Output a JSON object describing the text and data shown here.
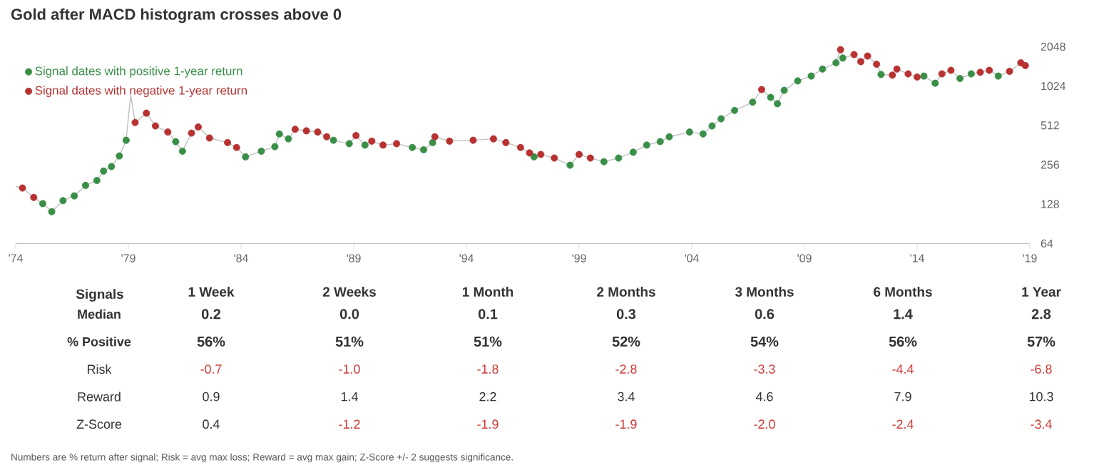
{
  "chart_data": [
    {
      "type": "scatter",
      "title": "Gold after MACD histogram crosses above 0",
      "marker": "circle",
      "log": "y",
      "legend": "top left",
      "xlim": [
        1974,
        2019
      ],
      "ylim": [
        64,
        2048
      ],
      "xticks": [
        {
          "value": 1974,
          "label": "'74"
        },
        {
          "value": 1979,
          "label": "'79"
        },
        {
          "value": 1984,
          "label": "'84"
        },
        {
          "value": 1989,
          "label": "'89"
        },
        {
          "value": 1994,
          "label": "'94"
        },
        {
          "value": 1999,
          "label": "'99"
        },
        {
          "value": 2004,
          "label": "'04"
        },
        {
          "value": 2009,
          "label": "'09"
        },
        {
          "value": 2014,
          "label": "'14"
        },
        {
          "value": 2019,
          "label": "'19"
        }
      ],
      "yticks": [
        64,
        128,
        256,
        512,
        1024,
        2048
      ],
      "series": [
        {
          "type": "line",
          "marker": "none",
          "color": "#c0c0c0",
          "x": [
            1974.0,
            1974.3,
            1974.8,
            1975.2,
            1975.6,
            1976.1,
            1976.6,
            1977.1,
            1977.6,
            1977.9,
            1978.25,
            1978.6,
            1978.9,
            1979.1,
            1979.3,
            1979.8,
            1980.2,
            1980.75,
            1981.1,
            1981.4,
            1981.8,
            1982.1,
            1982.6,
            1983.4,
            1983.8,
            1984.2,
            1984.9,
            1985.5,
            1985.7,
            1986.1,
            1986.4,
            1986.9,
            1987.4,
            1987.8,
            1988.1,
            1988.8,
            1989.1,
            1989.5,
            1989.8,
            1990.3,
            1990.9,
            1991.6,
            1992.1,
            1992.5,
            1992.6,
            1993.25,
            1994.3,
            1995.2,
            1995.75,
            1996.4,
            1996.8,
            1997.0,
            1997.3,
            1997.9,
            1998.6,
            1999.0,
            1999.5,
            2000.1,
            2000.75,
            2001.4,
            2002.0,
            2002.6,
            2003.0,
            2003.9,
            2004.5,
            2004.9,
            2005.3,
            2005.9,
            2006.7,
            2007.1,
            2007.5,
            2007.8,
            2008.1,
            2008.7,
            2009.3,
            2009.8,
            2010.4,
            2010.6,
            2010.7,
            2011.2,
            2011.5,
            2011.8,
            2012.2,
            2012.4,
            2012.9,
            2013.1,
            2013.6,
            2014.0,
            2014.3,
            2014.8,
            2015.1,
            2015.5,
            2015.9,
            2016.4,
            2016.8,
            2017.2,
            2017.6,
            2018.1,
            2018.6,
            2018.8
          ],
          "values": [
            175,
            170,
            144,
            129,
            112,
            136,
            148,
            178,
            194,
            229,
            248,
            299,
            394,
            872,
            538,
            635,
            507,
            455,
            384,
            325,
            447,
            498,
            410,
            378,
            347,
            294,
            325,
            352,
            440,
            404,
            478,
            465,
            455,
            419,
            394,
            371,
            428,
            362,
            388,
            362,
            371,
            347,
            333,
            378,
            419,
            388,
            394,
            404,
            378,
            347,
            315,
            294,
            307,
            288,
            254,
            307,
            288,
            270,
            288,
            319,
            362,
            385,
            419,
            455,
            440,
            507,
            575,
            666,
            770,
            962,
            838,
            750,
            949,
            1120,
            1220,
            1380,
            1540,
            1940,
            1674,
            1781,
            1572,
            1736,
            1502,
            1254,
            1240,
            1380,
            1268,
            1198,
            1220,
            1076,
            1268,
            1350,
            1169,
            1268,
            1303,
            1350,
            1220,
            1324,
            1540,
            1468
          ]
        },
        {
          "name": "Signal dates with positive 1-year return",
          "color": "#3a8f48",
          "x": [
            1975.2,
            1975.6,
            1976.1,
            1976.6,
            1977.1,
            1977.6,
            1977.9,
            1978.25,
            1978.6,
            1978.9,
            1981.1,
            1981.4,
            1984.2,
            1984.9,
            1985.5,
            1985.7,
            1986.1,
            1988.1,
            1988.8,
            1989.5,
            1991.6,
            1992.1,
            1992.5,
            1997.0,
            1998.6,
            2000.1,
            2000.75,
            2001.4,
            2002.0,
            2002.6,
            2003.0,
            2003.9,
            2004.5,
            2004.9,
            2005.3,
            2005.9,
            2006.7,
            2007.5,
            2007.8,
            2008.1,
            2008.7,
            2009.3,
            2009.8,
            2010.4,
            2010.7,
            2012.4,
            2014.3,
            2014.8,
            2015.9,
            2016.4,
            2017.6
          ],
          "values": [
            129,
            112,
            136,
            148,
            178,
            194,
            229,
            248,
            299,
            394,
            384,
            325,
            294,
            325,
            352,
            440,
            404,
            394,
            371,
            362,
            347,
            333,
            378,
            294,
            254,
            270,
            288,
            319,
            362,
            385,
            419,
            455,
            440,
            507,
            575,
            666,
            770,
            838,
            750,
            949,
            1120,
            1220,
            1380,
            1540,
            1674,
            1254,
            1220,
            1076,
            1169,
            1268,
            1220
          ]
        },
        {
          "name": "Signal dates with negative 1-year return",
          "color": "#b83232",
          "x": [
            1974.3,
            1974.8,
            1979.3,
            1979.8,
            1980.2,
            1980.75,
            1981.8,
            1982.1,
            1982.6,
            1983.4,
            1983.8,
            1986.4,
            1986.9,
            1987.4,
            1987.8,
            1989.1,
            1989.8,
            1990.3,
            1990.9,
            1992.6,
            1993.25,
            1994.3,
            1995.2,
            1995.75,
            1996.4,
            1996.8,
            1997.3,
            1997.9,
            1999.0,
            1999.5,
            2007.1,
            2010.6,
            2011.2,
            2011.5,
            2011.8,
            2012.2,
            2012.9,
            2013.1,
            2013.6,
            2014.0,
            2015.1,
            2015.5,
            2016.8,
            2017.2,
            2018.1,
            2018.6,
            2018.8
          ],
          "values": [
            170,
            144,
            538,
            635,
            507,
            455,
            447,
            498,
            410,
            378,
            347,
            478,
            465,
            455,
            419,
            428,
            388,
            362,
            371,
            419,
            388,
            394,
            404,
            378,
            347,
            315,
            307,
            288,
            307,
            288,
            962,
            1940,
            1781,
            1572,
            1736,
            1502,
            1240,
            1380,
            1268,
            1198,
            1268,
            1350,
            1303,
            1350,
            1324,
            1540,
            1468
          ]
        }
      ]
    },
    {
      "type": "heatmap",
      "ylabel": "Signals",
      "categories": [
        "1 Week",
        "2 Weeks",
        "1 Month",
        "2 Months",
        "3 Months",
        "6 Months",
        "1 Year"
      ],
      "y_categories": [
        "Median",
        "% Positive",
        "Risk",
        "Reward",
        "Z-Score"
      ],
      "cells": [
        [
          0.2,
          0.0,
          0.1,
          0.3,
          0.6,
          1.4,
          2.8
        ],
        [
          56,
          51,
          51,
          52,
          54,
          56,
          57
        ],
        [
          -0.7,
          -1.0,
          -1.8,
          -2.8,
          -3.3,
          -4.4,
          -6.8
        ],
        [
          0.9,
          1.4,
          2.2,
          3.4,
          4.6,
          7.9,
          10.3
        ],
        [
          0.4,
          -1.2,
          -1.9,
          -1.9,
          -2.0,
          -2.4,
          -3.4
        ]
      ],
      "cell_labels": [
        [
          "0.2",
          "0.0",
          "0.1",
          "0.3",
          "0.6",
          "1.4",
          "2.8"
        ],
        [
          "56%",
          "51%",
          "51%",
          "52%",
          "54%",
          "56%",
          "57%"
        ],
        [
          "-0.7",
          "-1.0",
          "-1.8",
          "-2.8",
          "-3.3",
          "-4.4",
          "-6.8"
        ],
        [
          "0.9",
          "1.4",
          "2.2",
          "3.4",
          "4.6",
          "7.9",
          "10.3"
        ],
        [
          "0.4",
          "-1.2",
          "-1.9",
          "-1.9",
          "-2.0",
          "-2.4",
          "-3.4"
        ]
      ],
      "annotations": [
        "Numbers are % return after signal; Risk = avg max loss; Reward = avg max gain; Z-Score +/- 2 suggests significance."
      ]
    }
  ]
}
